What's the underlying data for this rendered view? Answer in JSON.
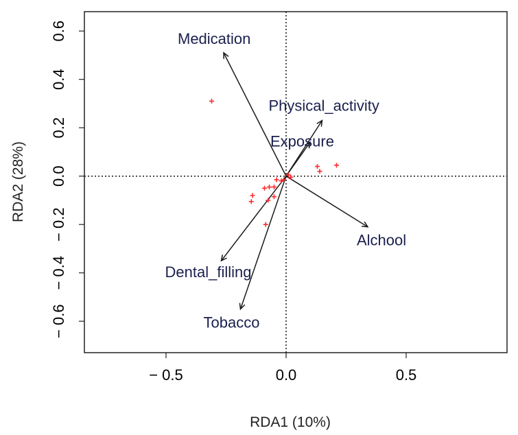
{
  "chart_data": {
    "type": "scatter",
    "subtype": "rda-biplot",
    "title": "",
    "xlabel": "RDA1 (10%)",
    "ylabel": "RDA2 (28%)",
    "xlim": [
      -0.84,
      0.92
    ],
    "ylim": [
      -0.73,
      0.68
    ],
    "x_ticks": [
      -0.5,
      0.0,
      0.5
    ],
    "x_tick_labels": [
      "− 0.5",
      "0.0",
      "0.5"
    ],
    "y_ticks": [
      -0.6,
      -0.4,
      -0.2,
      0.0,
      0.2,
      0.4,
      0.6
    ],
    "y_tick_labels": [
      "− 0.6",
      "− 0.4",
      "− 0.2",
      "0.0",
      "0.2",
      "0.4",
      "0.6"
    ],
    "reference_lines": {
      "x": 0,
      "y": 0,
      "style": "dotted"
    },
    "sample_point_color": "#ff2a2a",
    "arrow_color": "#1a1a1a",
    "samples": [
      {
        "x": -0.31,
        "y": 0.31
      },
      {
        "x": 0.13,
        "y": 0.04
      },
      {
        "x": 0.14,
        "y": 0.02
      },
      {
        "x": 0.21,
        "y": 0.045
      },
      {
        "x": 0.01,
        "y": 0.005
      },
      {
        "x": 0.02,
        "y": -0.005
      },
      {
        "x": -0.02,
        "y": -0.02
      },
      {
        "x": -0.04,
        "y": -0.015
      },
      {
        "x": -0.05,
        "y": -0.045
      },
      {
        "x": -0.07,
        "y": -0.045
      },
      {
        "x": -0.09,
        "y": -0.05
      },
      {
        "x": -0.05,
        "y": -0.085
      },
      {
        "x": -0.14,
        "y": -0.08
      },
      {
        "x": -0.145,
        "y": -0.105
      },
      {
        "x": -0.075,
        "y": -0.1
      },
      {
        "x": -0.085,
        "y": -0.2
      },
      {
        "x": -0.01,
        "y": -0.015
      }
    ],
    "vectors": [
      {
        "name": "Medication",
        "x": -0.26,
        "y": 0.51
      },
      {
        "name": "Physical_activity",
        "x": 0.15,
        "y": 0.23
      },
      {
        "name": "Exposure",
        "x": 0.1,
        "y": 0.14
      },
      {
        "name": "Alchool",
        "x": 0.34,
        "y": -0.21
      },
      {
        "name": "Dental_filling",
        "x": -0.27,
        "y": -0.35
      },
      {
        "name": "Tobacco",
        "x": -0.19,
        "y": -0.55
      }
    ]
  }
}
